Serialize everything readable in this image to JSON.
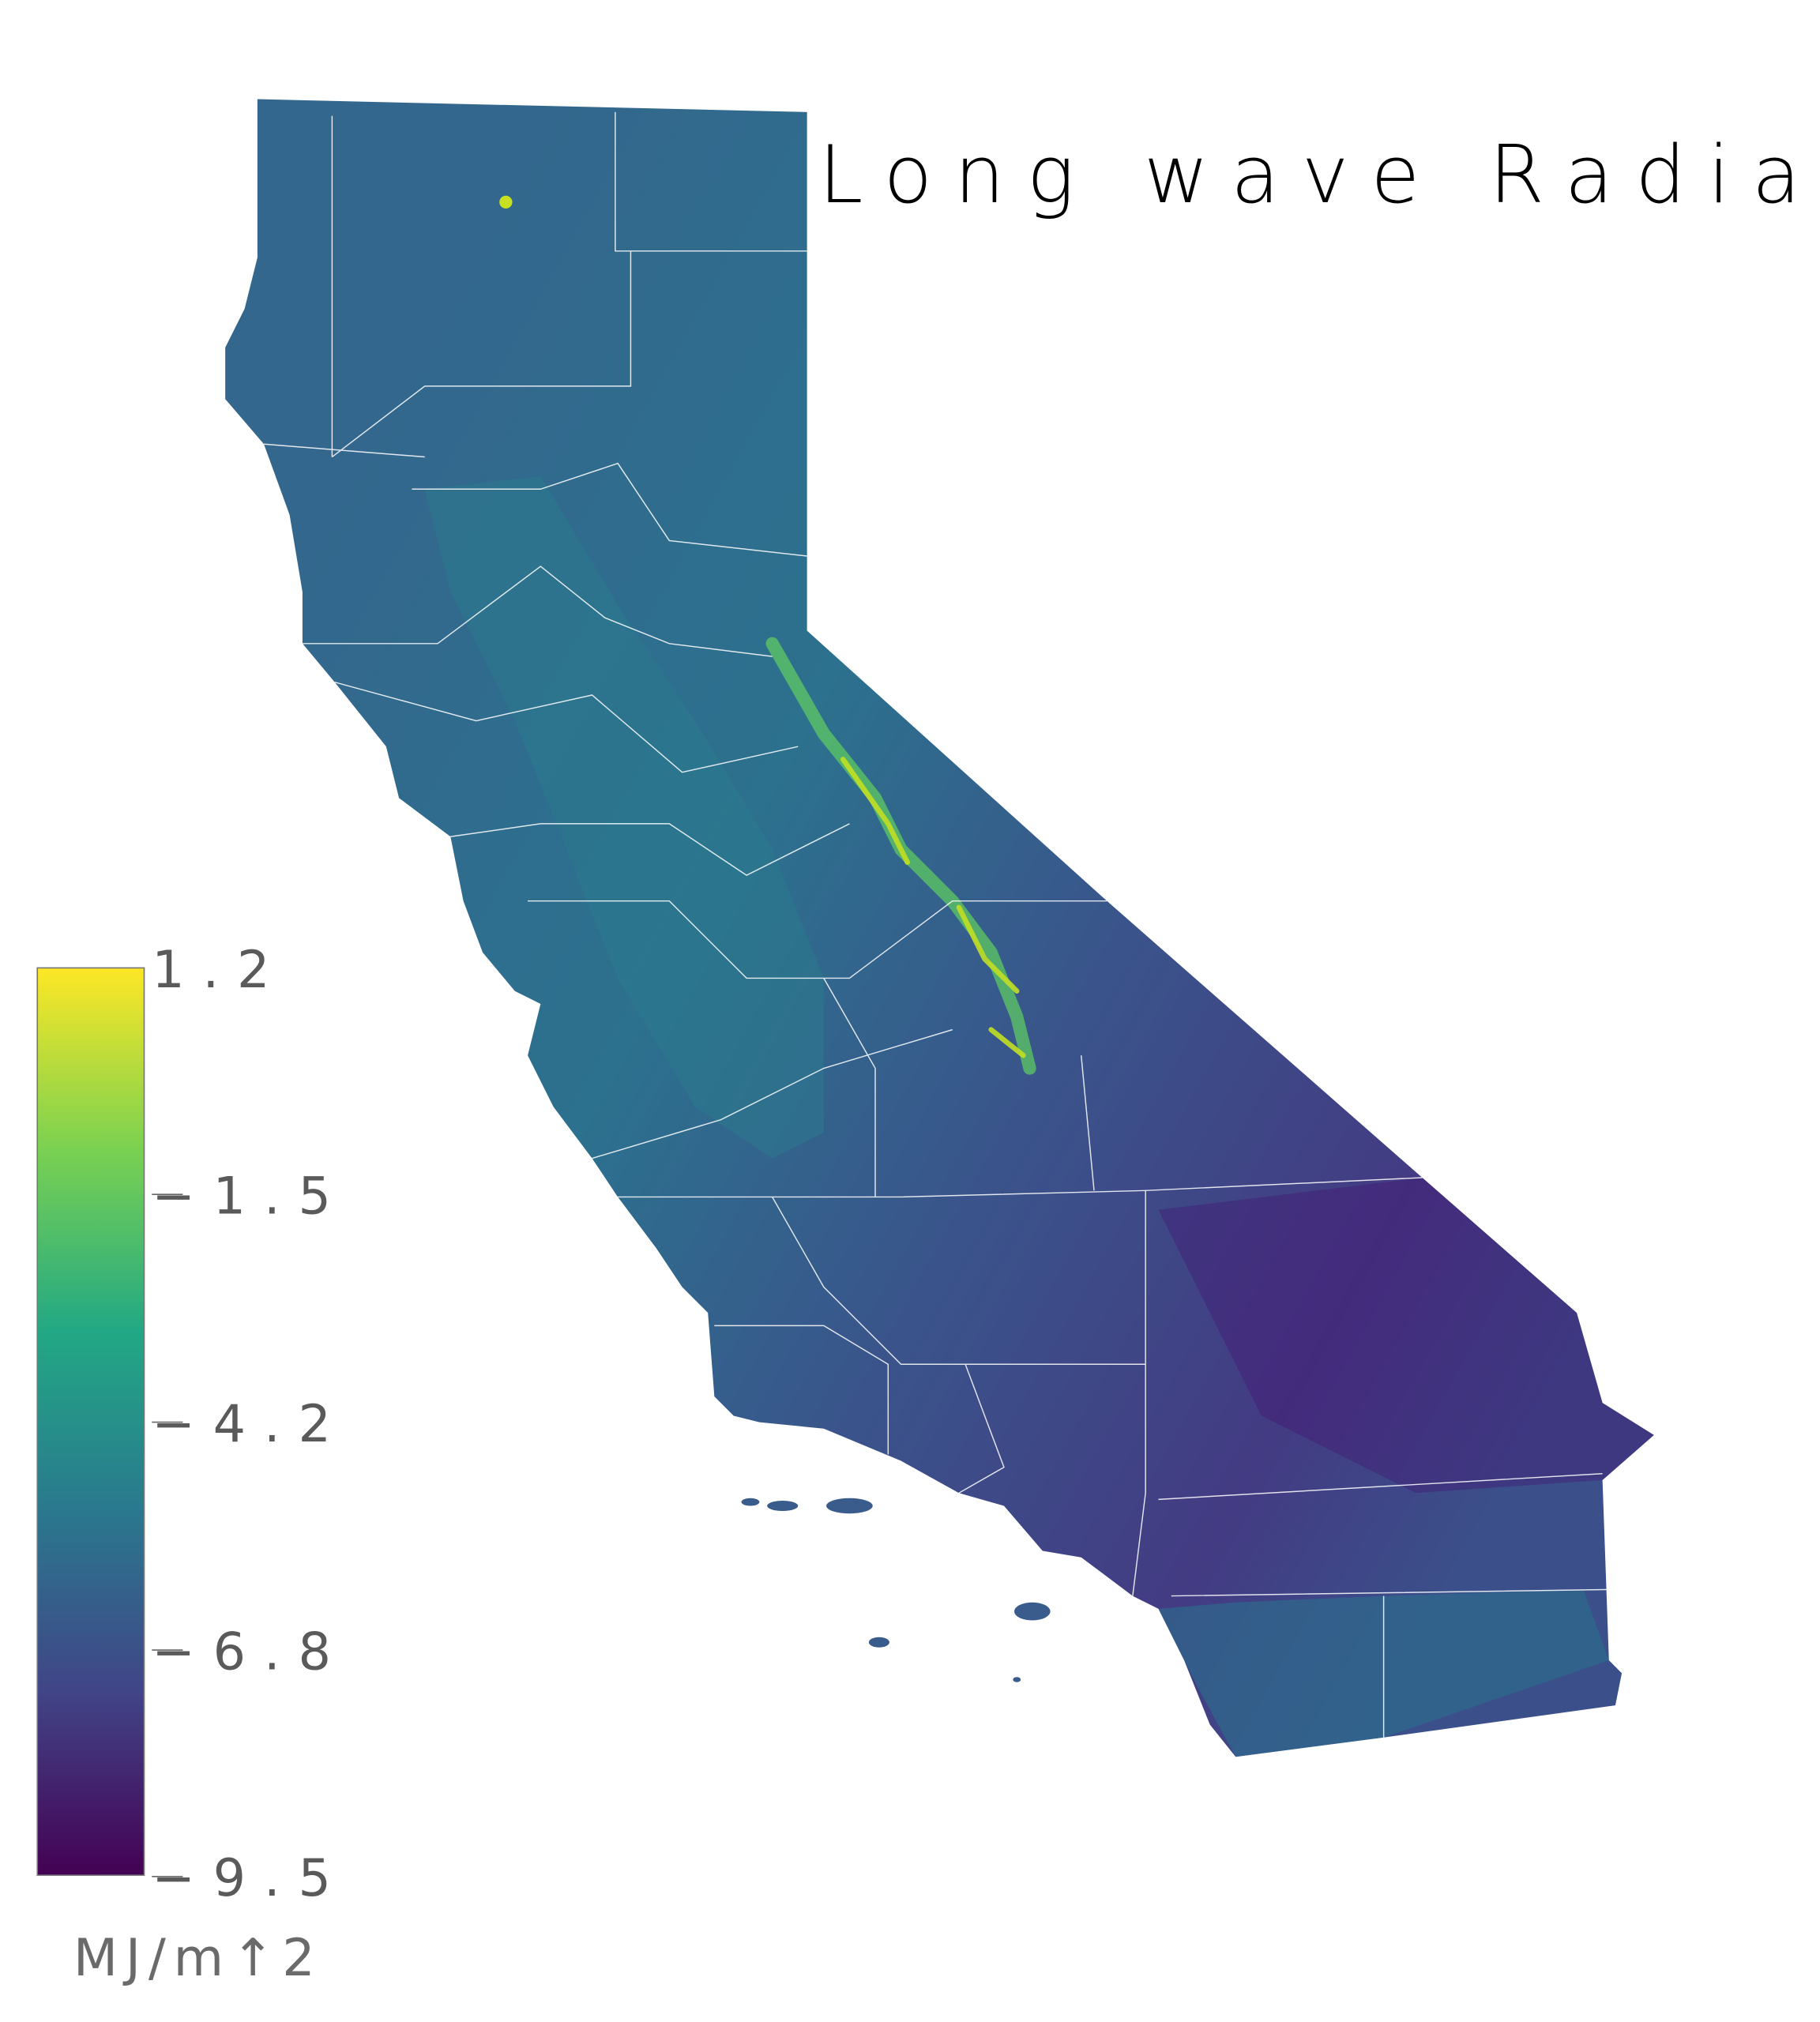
{
  "title": "Long wave Radiation",
  "chart_data": {
    "type": "heatmap",
    "title": "Long wave Radiation",
    "region": "California",
    "colormap": "viridis",
    "colorbar": {
      "min": -9.5,
      "max": 1.2,
      "ticks": [
        1.2,
        -1.5,
        -4.2,
        -6.8,
        -9.5
      ],
      "tick_labels": [
        "1.2",
        "−1.5",
        "−4.2",
        "−6.8",
        "−9.5"
      ],
      "unit_label": "MJ/m↑2",
      "colors": [
        "#fde725",
        "#7ad151",
        "#22a884",
        "#2a788e",
        "#414487",
        "#440154"
      ]
    },
    "borders": {
      "county_lines": true,
      "color": "#ffffff"
    }
  }
}
